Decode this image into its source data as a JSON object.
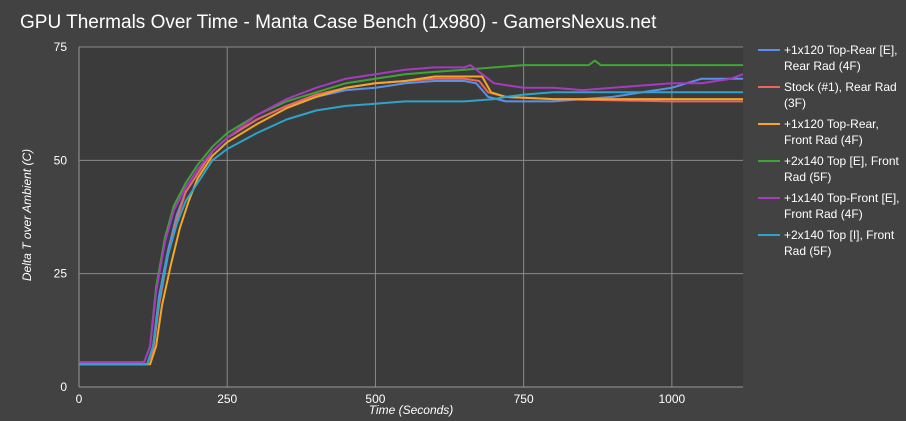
{
  "chart_data": {
    "type": "line",
    "title": "GPU Thermals Over Time - Manta Case Bench (1x980) - GamersNexus.net",
    "xlabel": "Time (Seconds)",
    "ylabel": "Delta T over Ambient (C)",
    "xlim": [
      0,
      1120
    ],
    "ylim": [
      0,
      75
    ],
    "xticks": [
      0,
      250,
      500,
      750,
      1000
    ],
    "yticks": [
      0,
      25,
      50,
      75
    ],
    "grid": true,
    "legend_position": "right",
    "series": [
      {
        "name": "+1x120 Top-Rear [E], Rear Rad (4F)",
        "color": "#5b8fe8",
        "points": [
          [
            0,
            5
          ],
          [
            115,
            5
          ],
          [
            125,
            9
          ],
          [
            135,
            20
          ],
          [
            150,
            30
          ],
          [
            165,
            38
          ],
          [
            180,
            43
          ],
          [
            200,
            47
          ],
          [
            225,
            52
          ],
          [
            250,
            55
          ],
          [
            300,
            59
          ],
          [
            350,
            62
          ],
          [
            400,
            64
          ],
          [
            450,
            65.5
          ],
          [
            500,
            66
          ],
          [
            550,
            67
          ],
          [
            600,
            67.5
          ],
          [
            650,
            67.5
          ],
          [
            670,
            67
          ],
          [
            690,
            64
          ],
          [
            720,
            63
          ],
          [
            800,
            63
          ],
          [
            900,
            64
          ],
          [
            950,
            65
          ],
          [
            1000,
            66
          ],
          [
            1050,
            68
          ],
          [
            1120,
            68
          ]
        ]
      },
      {
        "name": "Stock (#1), Rear Rad (3F)",
        "color": "#e8685f",
        "points": [
          [
            0,
            5
          ],
          [
            115,
            5
          ],
          [
            125,
            8
          ],
          [
            135,
            18
          ],
          [
            150,
            29
          ],
          [
            165,
            37
          ],
          [
            180,
            43
          ],
          [
            200,
            47
          ],
          [
            225,
            52
          ],
          [
            250,
            55
          ],
          [
            300,
            59
          ],
          [
            350,
            62
          ],
          [
            400,
            64.5
          ],
          [
            450,
            66
          ],
          [
            500,
            67
          ],
          [
            550,
            67.5
          ],
          [
            600,
            68
          ],
          [
            650,
            68
          ],
          [
            675,
            67.5
          ],
          [
            690,
            65
          ],
          [
            720,
            64
          ],
          [
            800,
            63.5
          ],
          [
            1000,
            63
          ],
          [
            1120,
            63
          ]
        ]
      },
      {
        "name": "+1x120 Top-Rear, Front Rad (4F)",
        "color": "#f5a623",
        "points": [
          [
            0,
            5
          ],
          [
            120,
            5
          ],
          [
            130,
            9
          ],
          [
            140,
            18
          ],
          [
            155,
            27
          ],
          [
            170,
            35
          ],
          [
            185,
            41
          ],
          [
            200,
            46
          ],
          [
            225,
            51
          ],
          [
            250,
            54
          ],
          [
            300,
            58
          ],
          [
            350,
            61.5
          ],
          [
            400,
            64
          ],
          [
            450,
            66
          ],
          [
            500,
            67
          ],
          [
            550,
            67.5
          ],
          [
            600,
            68.5
          ],
          [
            650,
            68.5
          ],
          [
            680,
            68.5
          ],
          [
            695,
            65
          ],
          [
            720,
            64
          ],
          [
            800,
            63.5
          ],
          [
            900,
            63.5
          ],
          [
            1000,
            63.5
          ],
          [
            1120,
            63.5
          ]
        ]
      },
      {
        "name": "+2x140 Top [E], Front Rad (5F)",
        "color": "#3fa535",
        "points": [
          [
            0,
            5.5
          ],
          [
            110,
            5.5
          ],
          [
            120,
            9
          ],
          [
            130,
            22
          ],
          [
            145,
            33
          ],
          [
            160,
            40
          ],
          [
            180,
            45
          ],
          [
            200,
            49
          ],
          [
            225,
            53
          ],
          [
            250,
            56
          ],
          [
            300,
            60
          ],
          [
            350,
            63
          ],
          [
            400,
            65
          ],
          [
            450,
            67
          ],
          [
            500,
            68
          ],
          [
            550,
            69
          ],
          [
            600,
            69.5
          ],
          [
            650,
            70
          ],
          [
            700,
            70.5
          ],
          [
            750,
            71
          ],
          [
            800,
            71
          ],
          [
            860,
            71
          ],
          [
            870,
            72
          ],
          [
            880,
            71
          ],
          [
            1000,
            71
          ],
          [
            1120,
            71
          ]
        ]
      },
      {
        "name": "+1x140 Top-Front [E], Front Rad (4F)",
        "color": "#a63bbf",
        "points": [
          [
            0,
            5.5
          ],
          [
            110,
            5.5
          ],
          [
            120,
            9
          ],
          [
            130,
            21
          ],
          [
            145,
            32
          ],
          [
            160,
            39
          ],
          [
            180,
            44
          ],
          [
            200,
            48
          ],
          [
            225,
            52
          ],
          [
            250,
            55
          ],
          [
            300,
            60
          ],
          [
            350,
            63.5
          ],
          [
            400,
            66
          ],
          [
            450,
            68
          ],
          [
            500,
            69
          ],
          [
            550,
            70
          ],
          [
            600,
            70.5
          ],
          [
            650,
            70.5
          ],
          [
            660,
            71
          ],
          [
            680,
            69
          ],
          [
            700,
            67
          ],
          [
            750,
            66
          ],
          [
            800,
            66
          ],
          [
            850,
            65.5
          ],
          [
            900,
            66
          ],
          [
            950,
            66.5
          ],
          [
            1000,
            67
          ],
          [
            1050,
            67
          ],
          [
            1100,
            68
          ],
          [
            1120,
            69
          ]
        ]
      },
      {
        "name": "+2x140 Top [I], Front Rad (5F)",
        "color": "#2fa3c9",
        "points": [
          [
            0,
            5
          ],
          [
            115,
            5
          ],
          [
            125,
            9
          ],
          [
            135,
            19
          ],
          [
            150,
            29
          ],
          [
            165,
            36
          ],
          [
            180,
            41
          ],
          [
            200,
            45
          ],
          [
            225,
            50
          ],
          [
            250,
            52.5
          ],
          [
            300,
            56
          ],
          [
            350,
            59
          ],
          [
            400,
            61
          ],
          [
            450,
            62
          ],
          [
            500,
            62.5
          ],
          [
            550,
            63
          ],
          [
            600,
            63
          ],
          [
            650,
            63
          ],
          [
            700,
            63.5
          ],
          [
            720,
            64
          ],
          [
            750,
            64.5
          ],
          [
            800,
            65
          ],
          [
            850,
            65
          ],
          [
            900,
            65
          ],
          [
            1000,
            65
          ],
          [
            1120,
            65
          ]
        ]
      }
    ]
  }
}
